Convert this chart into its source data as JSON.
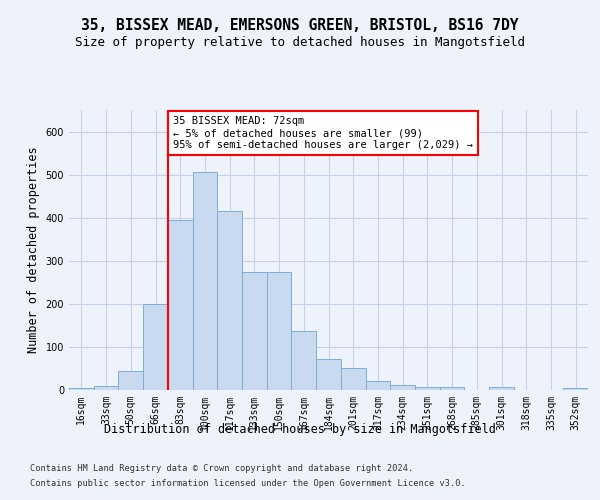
{
  "title1": "35, BISSEX MEAD, EMERSONS GREEN, BRISTOL, BS16 7DY",
  "title2": "Size of property relative to detached houses in Mangotsfield",
  "xlabel": "Distribution of detached houses by size in Mangotsfield",
  "ylabel": "Number of detached properties",
  "categories": [
    "16sqm",
    "33sqm",
    "50sqm",
    "66sqm",
    "83sqm",
    "100sqm",
    "117sqm",
    "133sqm",
    "150sqm",
    "167sqm",
    "184sqm",
    "201sqm",
    "217sqm",
    "234sqm",
    "251sqm",
    "268sqm",
    "285sqm",
    "301sqm",
    "318sqm",
    "335sqm",
    "352sqm"
  ],
  "values": [
    5,
    10,
    45,
    200,
    395,
    505,
    415,
    275,
    275,
    137,
    72,
    50,
    22,
    12,
    8,
    7,
    0,
    8,
    0,
    0,
    4
  ],
  "bar_color": "#c9d9f0",
  "bar_edge_color": "#7bafd4",
  "red_line_x": 3.5,
  "annotation_text": "35 BISSEX MEAD: 72sqm\n← 5% of detached houses are smaller (99)\n95% of semi-detached houses are larger (2,029) →",
  "annotation_box_color": "white",
  "annotation_box_edge": "red",
  "footer1": "Contains HM Land Registry data © Crown copyright and database right 2024.",
  "footer2": "Contains public sector information licensed under the Open Government Licence v3.0.",
  "bg_color": "#eef2fb",
  "grid_color": "#c8cfe8",
  "ylim": [
    0,
    650
  ],
  "title1_fontsize": 10.5,
  "title2_fontsize": 9,
  "tick_fontsize": 7,
  "ylabel_fontsize": 8.5,
  "xlabel_fontsize": 8.5,
  "footer_fontsize": 6.2
}
